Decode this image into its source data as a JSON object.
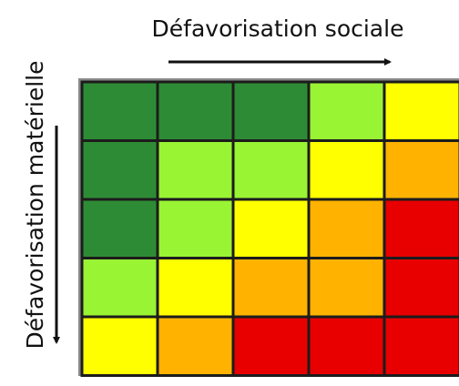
{
  "top_label": "Défavorisation sociale",
  "left_label": "Défavorisation matérielle",
  "grid": {
    "rows": [
      [
        "#2e8b35",
        "#2e8b35",
        "#2e8b35",
        "#99f433",
        "#ffff00"
      ],
      [
        "#2e8b35",
        "#99f433",
        "#99f433",
        "#ffff00",
        "#ffb300"
      ],
      [
        "#2e8b35",
        "#99f433",
        "#ffff00",
        "#ffb300",
        "#e80000"
      ],
      [
        "#99f433",
        "#ffff00",
        "#ffb300",
        "#ffb300",
        "#e80000"
      ],
      [
        "#ffff00",
        "#ffb300",
        "#e80000",
        "#e80000",
        "#e80000"
      ]
    ]
  }
}
